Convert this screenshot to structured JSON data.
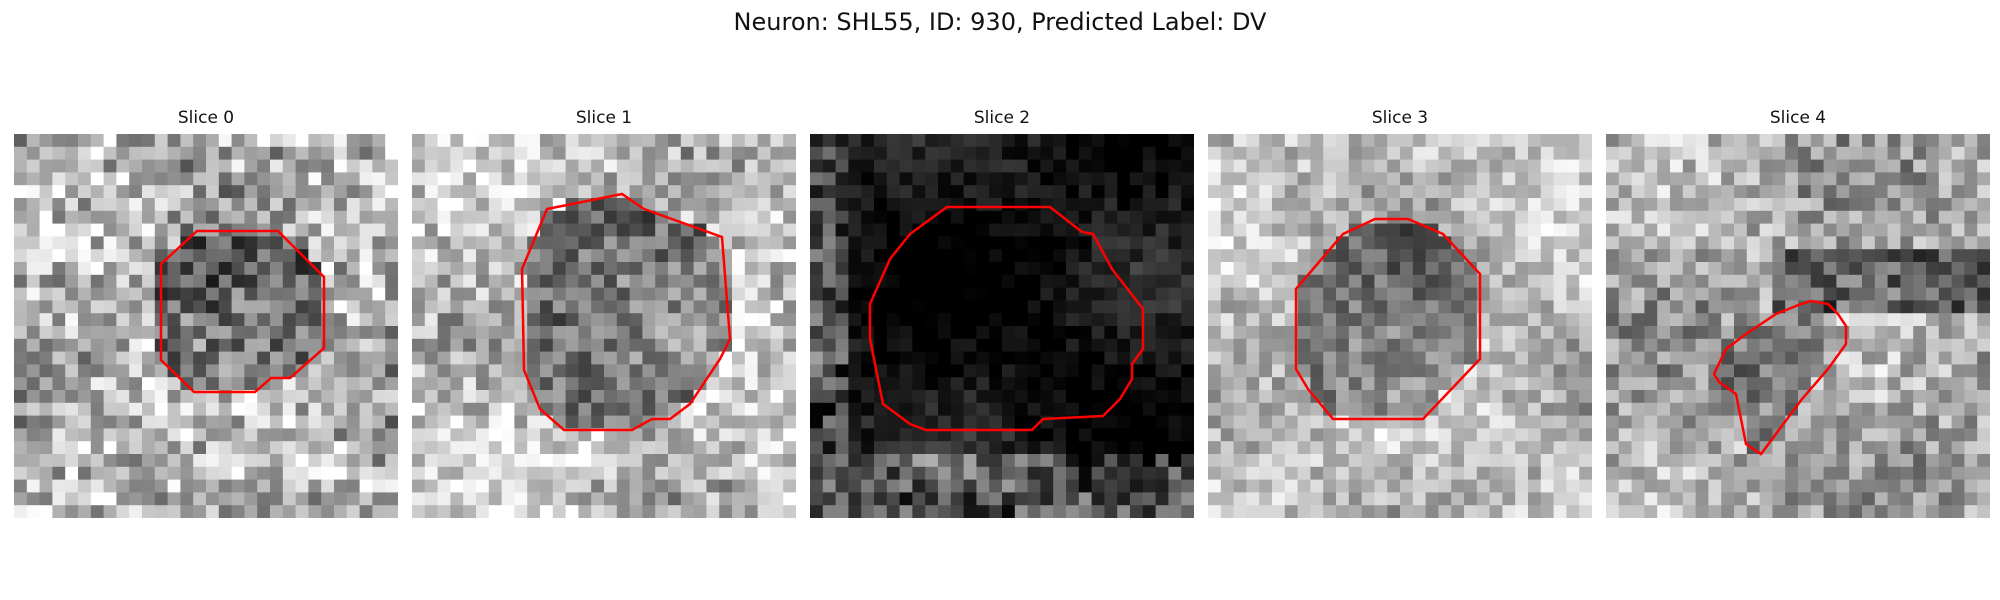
{
  "figure": {
    "title": "Neuron: SHL55, ID: 930, Predicted Label: DV",
    "contour_color": "#ff0000"
  },
  "panels": [
    {
      "title": "Slice 0"
    },
    {
      "title": "Slice 1"
    },
    {
      "title": "Slice 2"
    },
    {
      "title": "Slice 3"
    },
    {
      "title": "Slice 4"
    }
  ]
}
